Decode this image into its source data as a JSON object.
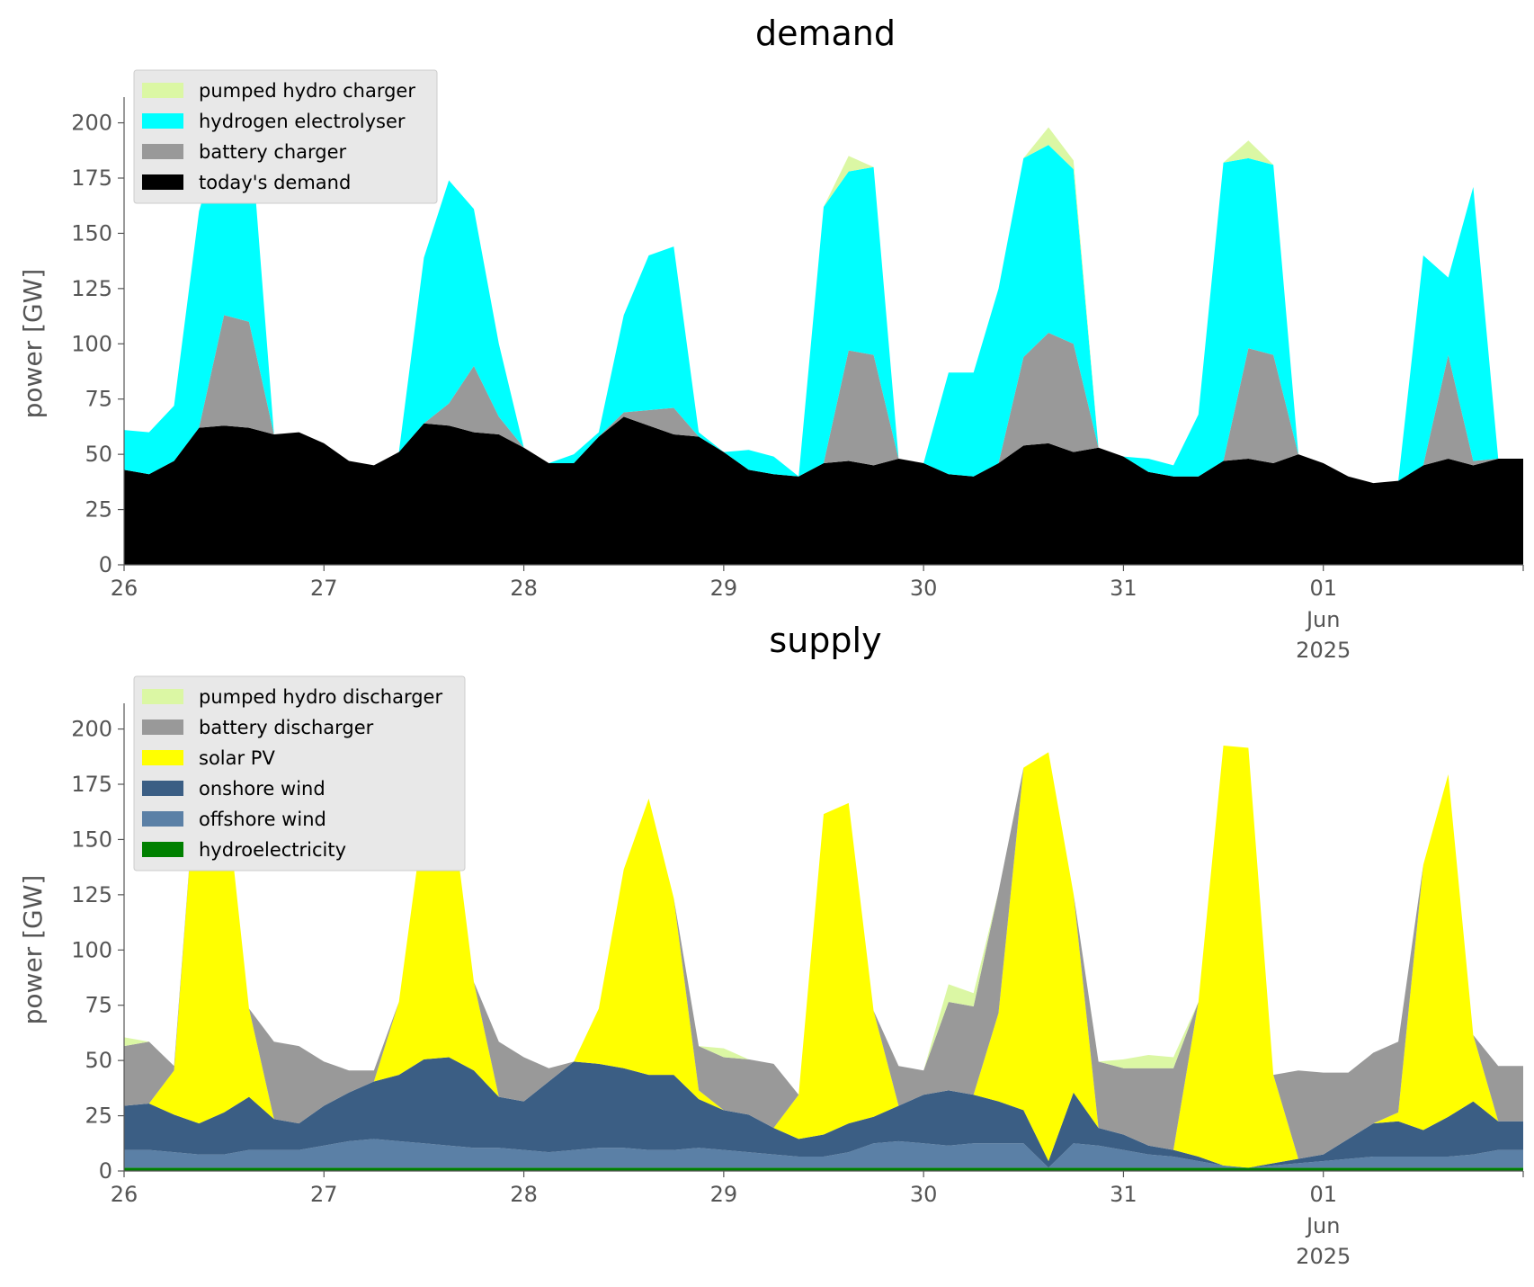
{
  "chart_data": [
    {
      "type": "area",
      "stacked": true,
      "title": "demand",
      "ylabel": "power [GW]",
      "xlabel": "",
      "ylim": [
        0,
        210
      ],
      "xlim": [
        "2025-05-26T00:00",
        "2025-06-02T00:00"
      ],
      "yticks": [
        0,
        25,
        50,
        75,
        100,
        125,
        150,
        175,
        200
      ],
      "xtick_labels": [
        "26",
        "27",
        "28",
        "29",
        "30",
        "31",
        "01",
        "Jun",
        "2025"
      ],
      "legend_position": "top-left",
      "grid": false,
      "x_hours": [
        0,
        3,
        6,
        9,
        12,
        15,
        18,
        21,
        24,
        27,
        30,
        33,
        36,
        39,
        42,
        45,
        48,
        51,
        54,
        57,
        60,
        63,
        66,
        69,
        72,
        75,
        78,
        81,
        84,
        87,
        90,
        93,
        96,
        99,
        102,
        105,
        108,
        111,
        114,
        117,
        120,
        123,
        126,
        129,
        132,
        135,
        138,
        141,
        144,
        147,
        150,
        153,
        156,
        159,
        162,
        165
      ],
      "series": [
        {
          "name": "today's demand",
          "color": "#000000",
          "values": [
            43,
            41,
            47,
            62,
            63,
            62,
            59,
            60,
            55,
            47,
            45,
            51,
            64,
            63,
            60,
            59,
            53,
            46,
            46,
            58,
            67,
            63,
            59,
            58,
            51,
            43,
            41,
            40,
            46,
            47,
            45,
            48,
            46,
            41,
            40,
            46,
            54,
            55,
            51,
            53,
            49,
            42,
            40,
            40,
            47,
            48,
            46,
            50,
            46,
            40,
            37,
            38,
            45,
            48,
            45,
            48
          ]
        },
        {
          "name": "battery charger",
          "color": "#999999",
          "values": [
            0,
            0,
            0,
            0,
            50,
            48,
            0,
            0,
            0,
            0,
            0,
            0,
            0,
            10,
            30,
            8,
            0,
            0,
            0,
            0,
            2,
            7,
            12,
            0,
            0,
            0,
            0,
            0,
            0,
            50,
            50,
            0,
            0,
            0,
            0,
            0,
            40,
            50,
            49,
            0,
            0,
            0,
            0,
            0,
            0,
            50,
            49,
            0,
            0,
            0,
            0,
            0,
            0,
            47,
            2,
            0
          ]
        },
        {
          "name": "hydrogen electrolyser",
          "color": "#00ffff",
          "values": [
            18,
            19,
            25,
            98,
            86,
            95,
            0,
            0,
            0,
            0,
            0,
            0,
            75,
            101,
            71,
            33,
            0,
            0,
            4,
            2,
            44,
            70,
            73,
            2,
            0,
            9,
            8,
            0,
            116,
            81,
            85,
            0,
            0,
            46,
            47,
            79,
            90,
            85,
            79,
            0,
            0,
            6,
            5,
            28,
            135,
            86,
            86,
            0,
            0,
            0,
            0,
            0,
            95,
            35,
            124,
            0
          ]
        },
        {
          "name": "pumped hydro charger",
          "color": "#dbf7a4",
          "values": [
            0,
            0,
            0,
            0,
            0,
            0,
            0,
            0,
            0,
            0,
            0,
            0,
            0,
            0,
            0,
            0,
            0,
            0,
            0,
            0,
            0,
            0,
            0,
            0,
            0,
            0,
            0,
            0,
            0,
            7,
            0,
            0,
            0,
            0,
            0,
            0,
            0,
            8,
            4,
            0,
            0,
            0,
            0,
            0,
            0,
            8,
            0,
            0,
            0,
            0,
            0,
            0,
            0,
            0,
            0,
            0
          ]
        }
      ]
    },
    {
      "type": "area",
      "stacked": true,
      "title": "supply",
      "ylabel": "power [GW]",
      "xlabel": "",
      "ylim": [
        0,
        210
      ],
      "xlim": [
        "2025-05-26T00:00",
        "2025-06-02T00:00"
      ],
      "yticks": [
        0,
        25,
        50,
        75,
        100,
        125,
        150,
        175,
        200
      ],
      "xtick_labels": [
        "26",
        "27",
        "28",
        "29",
        "30",
        "31",
        "01",
        "Jun",
        "2025"
      ],
      "legend_position": "top-left",
      "grid": false,
      "x_hours": [
        0,
        3,
        6,
        9,
        12,
        15,
        18,
        21,
        24,
        27,
        30,
        33,
        36,
        39,
        42,
        45,
        48,
        51,
        54,
        57,
        60,
        63,
        66,
        69,
        72,
        75,
        78,
        81,
        84,
        87,
        90,
        93,
        96,
        99,
        102,
        105,
        108,
        111,
        114,
        117,
        120,
        123,
        126,
        129,
        132,
        135,
        138,
        141,
        144,
        147,
        150,
        153,
        156,
        159,
        162,
        165
      ],
      "series": [
        {
          "name": "hydroelectricity",
          "color": "#008000",
          "values": [
            1.5,
            1.5,
            1.5,
            1.5,
            1.5,
            1.5,
            1.5,
            1.5,
            1.5,
            1.5,
            1.5,
            1.5,
            1.5,
            1.5,
            1.5,
            1.5,
            1.5,
            1.5,
            1.5,
            1.5,
            1.5,
            1.5,
            1.5,
            1.5,
            1.5,
            1.5,
            1.5,
            1.5,
            1.5,
            1.5,
            1.5,
            1.5,
            1.5,
            1.5,
            1.5,
            1.5,
            1.5,
            1.5,
            1.5,
            1.5,
            1.5,
            1.5,
            1.5,
            1.5,
            1.5,
            1.5,
            1.5,
            1.5,
            1.5,
            1.5,
            1.5,
            1.5,
            1.5,
            1.5,
            1.5,
            1.5
          ]
        },
        {
          "name": "offshore wind",
          "color": "#5b80a6",
          "values": [
            8,
            8,
            7,
            6,
            6,
            8,
            8,
            8,
            10,
            12,
            13,
            12,
            11,
            10,
            9,
            9,
            8,
            7,
            8,
            9,
            9,
            8,
            8,
            9,
            8,
            7,
            6,
            5,
            5,
            7,
            11,
            12,
            11,
            10,
            11,
            11,
            11,
            0,
            11,
            10,
            8,
            6,
            5,
            3,
            1,
            0,
            1,
            2,
            3,
            4,
            5,
            5,
            5,
            5,
            6,
            8
          ]
        },
        {
          "name": "onshore wind",
          "color": "#3b5e84",
          "values": [
            20,
            21,
            17,
            14,
            19,
            24,
            14,
            12,
            18,
            22,
            26,
            30,
            38,
            40,
            35,
            23,
            22,
            32,
            40,
            38,
            36,
            34,
            34,
            22,
            18,
            17,
            12,
            8,
            10,
            13,
            12,
            16,
            22,
            25,
            22,
            19,
            15,
            3,
            23,
            8,
            7,
            4,
            3,
            2,
            0,
            0,
            1,
            2,
            3,
            9,
            15,
            16,
            12,
            18,
            24,
            13
          ]
        },
        {
          "name": "solar PV",
          "color": "#ffff00",
          "values": [
            0,
            0,
            20,
            175,
            152,
            40,
            0,
            0,
            0,
            0,
            0,
            33,
            110,
            124,
            40,
            0,
            0,
            0,
            0,
            25,
            90,
            125,
            80,
            4,
            0,
            0,
            0,
            20,
            145,
            145,
            48,
            0,
            0,
            0,
            0,
            40,
            155,
            185,
            90,
            0,
            0,
            0,
            0,
            70,
            190,
            190,
            40,
            0,
            0,
            0,
            0,
            4,
            120,
            155,
            30,
            0
          ]
        },
        {
          "name": "battery discharger",
          "color": "#999999",
          "values": [
            27,
            28,
            2,
            0,
            0,
            0,
            35,
            35,
            20,
            10,
            5,
            0,
            0,
            0,
            0,
            25,
            20,
            6,
            0,
            0,
            0,
            0,
            0,
            20,
            24,
            25,
            29,
            0,
            0,
            0,
            0,
            18,
            11,
            40,
            40,
            55,
            0,
            0,
            0,
            30,
            30,
            35,
            37,
            0,
            0,
            0,
            0,
            40,
            37,
            30,
            32,
            32,
            0,
            0,
            0,
            25
          ]
        },
        {
          "name": "pumped hydro discharger",
          "color": "#dbf7a4",
          "values": [
            4,
            0,
            0,
            0,
            0,
            0,
            0,
            0,
            0,
            0,
            0,
            0,
            0,
            0,
            0,
            0,
            0,
            0,
            0,
            0,
            0,
            0,
            0,
            0,
            4,
            0,
            0,
            0,
            0,
            0,
            0,
            0,
            0,
            8,
            6,
            0,
            0,
            0,
            0,
            0,
            4,
            6,
            5,
            0,
            0,
            0,
            0,
            0,
            0,
            0,
            0,
            0,
            0,
            0,
            0,
            0
          ]
        }
      ]
    }
  ]
}
